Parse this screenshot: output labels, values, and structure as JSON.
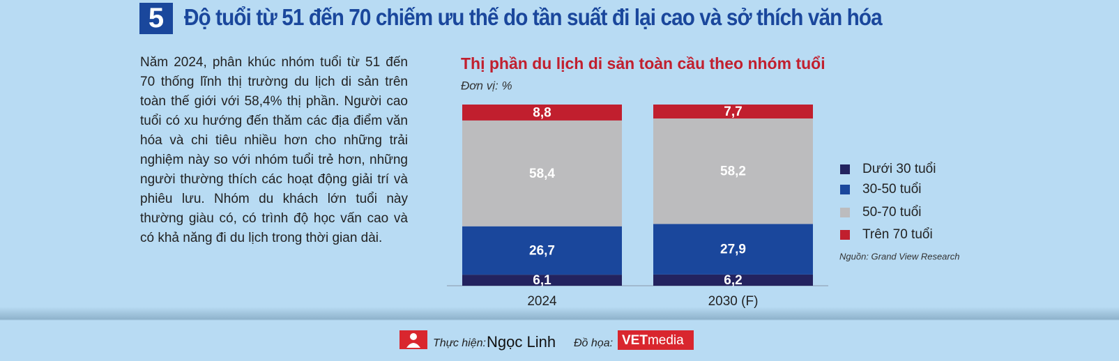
{
  "header": {
    "number": "5",
    "title": "Độ tuổi từ 51 đến 70 chiếm ưu thế do tần suất đi lại cao và sở thích văn hóa"
  },
  "paragraph": "Năm 2024, phân khúc nhóm tuổi từ 51 đến 70 thống lĩnh thị trường du lịch di sản trên toàn thế giới với 58,4% thị phần. Người cao tuổi có xu hướng đến thăm các địa điểm văn hóa và chi tiêu nhiều hơn cho những trải nghiệm này so với nhóm tuổi trẻ hơn, những người thường thích các hoạt động giải trí và phiêu lưu. Nhóm du khách lớn tuổi này thường giàu có, có trình độ học vấn cao và có khả năng đi du lịch trong thời gian dài.",
  "chart_data": {
    "type": "stacked-bar",
    "title": "Thị phần du lịch di sản toàn cầu theo nhóm tuổi",
    "subtitle": "Đơn vị: %",
    "source": "Nguồn: Grand View Research",
    "categories": [
      "2024",
      "2030 (F)"
    ],
    "series": [
      {
        "name": "Dưới 30 tuổi",
        "color": "#23235f",
        "values": [
          6.1,
          6.2
        ],
        "value_labels": [
          "6,1",
          "6,2"
        ]
      },
      {
        "name": "30-50 tuổi",
        "color": "#1a479c",
        "values": [
          26.7,
          27.9
        ],
        "value_labels": [
          "26,7",
          "27,9"
        ]
      },
      {
        "name": "50-70 tuổi",
        "color": "#bcbcbe",
        "values": [
          58.4,
          58.2
        ],
        "value_labels": [
          "58,4",
          "58,2"
        ]
      },
      {
        "name": "Trên 70 tuổi",
        "color": "#c11f2e",
        "values": [
          8.8,
          7.7
        ],
        "value_labels": [
          "8,8",
          "7,7"
        ]
      }
    ]
  },
  "footer": {
    "made_by_label": "Thực hiện:",
    "made_by": "Ngọc Linh",
    "graphics_label": "Đồ họa:",
    "logo_bold": "VET",
    "logo_light": "media"
  }
}
